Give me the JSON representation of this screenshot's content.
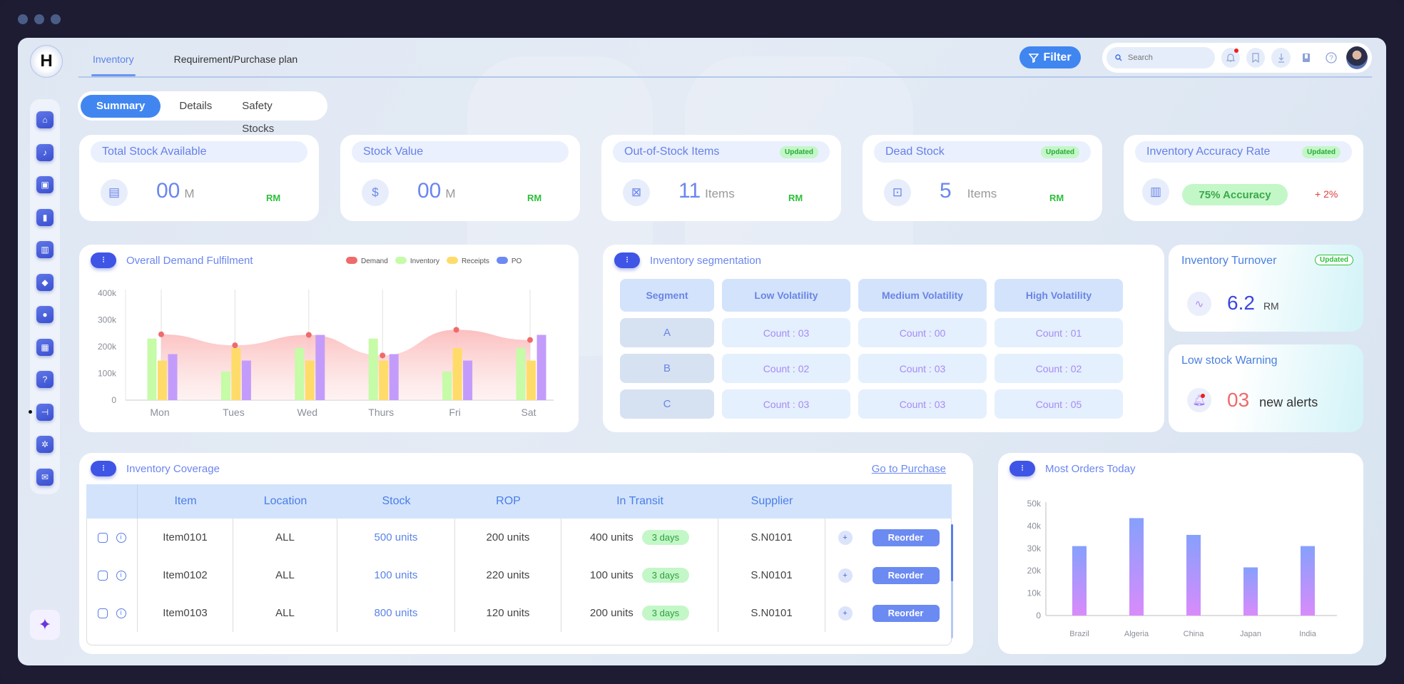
{
  "window": {
    "controls": [
      "close",
      "minimize",
      "maximize"
    ]
  },
  "logo": {
    "letter": "H"
  },
  "top_tabs": [
    {
      "label": "Inventory",
      "active": true
    },
    {
      "label": "Requirement/Purchase plan",
      "active": false
    }
  ],
  "toolbar": {
    "filter_label": "Filter",
    "search_placeholder": "Search",
    "icons": [
      "bell-icon",
      "bookmark-icon",
      "download-icon",
      "book-icon",
      "help-icon"
    ],
    "notification_dot": true
  },
  "sidebar": {
    "items": [
      "home",
      "alerts",
      "stock-hand",
      "analytics",
      "warehouse",
      "pricing",
      "savings",
      "schedule",
      "help-chat",
      "hierarchy",
      "settings",
      "mail"
    ],
    "active_index": 9
  },
  "sub_tabs": [
    {
      "label": "Summary",
      "active": true
    },
    {
      "label": "Details",
      "active": false
    },
    {
      "label": "Safety Stocks",
      "active": false
    }
  ],
  "kpis": [
    {
      "title": "Total Stock Available",
      "value": "00",
      "unit": "M",
      "currency": "RM",
      "badge": null
    },
    {
      "title": "Stock Value",
      "value": "00",
      "unit": "M",
      "currency": "RM",
      "badge": null
    },
    {
      "title": "Out-of-Stock Items",
      "value": "11",
      "unit": "Items",
      "currency": "RM",
      "badge": "Updated"
    },
    {
      "title": "Dead Stock",
      "value": "5",
      "unit": "Items",
      "currency": "RM",
      "badge": "Updated"
    },
    {
      "title": "Inventory Accuracy Rate",
      "value": "75% Accuracy",
      "delta": "+ 2%",
      "badge": "Updated"
    }
  ],
  "demand_card": {
    "title": "Overall Demand Fulfilment"
  },
  "segmentation": {
    "title": "Inventory segmentation",
    "headers": [
      "Segment",
      "Low Volatility",
      "Medium Volatility",
      "High Volatility"
    ],
    "rows": [
      {
        "segment": "A",
        "low": "Count : 03",
        "medium": "Count : 00",
        "high": "Count : 01"
      },
      {
        "segment": "B",
        "low": "Count : 02",
        "medium": "Count : 03",
        "high": "Count : 02"
      },
      {
        "segment": "C",
        "low": "Count : 03",
        "medium": "Count : 03",
        "high": "Count : 05"
      }
    ]
  },
  "turnover": {
    "title": "Inventory Turnover",
    "badge": "Updated",
    "value": "6.2",
    "unit": "RM"
  },
  "low_stock": {
    "title": "Low stock Warning",
    "count": "03",
    "label": "new alerts"
  },
  "coverage": {
    "title": "Inventory Coverage",
    "link": "Go to Purchase",
    "columns": [
      "",
      "Item",
      "Location",
      "Stock",
      "ROP",
      "In Transit",
      "Supplier",
      ""
    ],
    "rows": [
      {
        "item": "Item0101",
        "location": "ALL",
        "stock": "500 units",
        "rop": "200 units",
        "transit": "400 units",
        "eta": "3 days",
        "supplier": "S.N0101",
        "action": "Reorder"
      },
      {
        "item": "Item0102",
        "location": "ALL",
        "stock": "100 units",
        "rop": "220 units",
        "transit": "100 units",
        "eta": "3 days",
        "supplier": "S.N0101",
        "action": "Reorder"
      },
      {
        "item": "Item0103",
        "location": "ALL",
        "stock": "800 units",
        "rop": "120 units",
        "transit": "200 units",
        "eta": "3 days",
        "supplier": "S.N0101",
        "action": "Reorder"
      }
    ]
  },
  "orders_card": {
    "title": "Most Orders Today"
  },
  "colors": {
    "accent": "#4186f0",
    "demand": "#ef6b6b",
    "inventory": "#c6fba8",
    "receipts": "#ffdc6a",
    "po": "#c39cfb",
    "po_legend": "#6b8af2",
    "positive": "#2cbf3a",
    "negative": "#e23d3d"
  },
  "chart_data": [
    {
      "type": "bar",
      "title": "Overall Demand Fulfilment",
      "categories": [
        "Mon",
        "Tues",
        "Wed",
        "Thurs",
        "Fri",
        "Sat"
      ],
      "series": [
        {
          "name": "Demand",
          "type": "area",
          "values": [
            246000,
            205000,
            244000,
            167000,
            263000,
            225000
          ]
        },
        {
          "name": "Inventory",
          "values": [
            230000,
            107000,
            195000,
            230000,
            107000,
            195000
          ]
        },
        {
          "name": "Receipts",
          "values": [
            148000,
            195000,
            148000,
            148000,
            195000,
            148000
          ]
        },
        {
          "name": "PO",
          "values": [
            172000,
            148000,
            244000,
            172000,
            148000,
            244000
          ]
        }
      ],
      "yticks": [
        "0",
        "100k",
        "200k",
        "300k",
        "400k"
      ],
      "ylim": [
        0,
        400000
      ],
      "legend": [
        "Demand",
        "Inventory",
        "Receipts",
        "PO"
      ],
      "legend_position": "top-right",
      "grid": "vertical"
    },
    {
      "type": "bar",
      "title": "Most Orders Today",
      "categories": [
        "Brazil",
        "Algeria",
        "China",
        "Japan",
        "India"
      ],
      "values": [
        31000,
        43500,
        36000,
        21500,
        31000
      ],
      "yticks": [
        "0",
        "10k",
        "20k",
        "30k",
        "40k",
        "50k"
      ],
      "ylim": [
        0,
        50000
      ],
      "xlabel": "",
      "ylabel": ""
    }
  ]
}
